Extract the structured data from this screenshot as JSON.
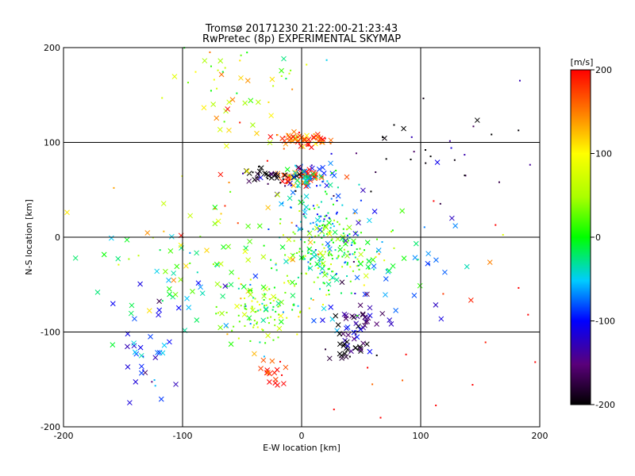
{
  "chart_data": {
    "type": "scatter",
    "title": "Tromsø 20171230 21:22:00-21:23:43",
    "subtitle": "RwPretec (8p) EXPERIMENTAL SKYMAP",
    "xlabel": "E-W location [km]",
    "ylabel": "N-S location [km]",
    "xlim": [
      -200,
      200
    ],
    "ylim": [
      -200,
      200
    ],
    "xticks": [
      -200,
      -100,
      0,
      100,
      200
    ],
    "yticks": [
      -200,
      -100,
      0,
      100,
      200
    ],
    "grid_lines_x": [
      -100,
      0,
      100
    ],
    "grid_lines_y": [
      -100,
      0,
      100
    ],
    "colorbar": {
      "label": "[m/s]",
      "min": -200,
      "max": 200,
      "ticks": [
        200,
        100,
        0,
        -100,
        -200
      ],
      "colormap": "black-purple-blue-cyan-green-yellow-orange-red"
    },
    "marker_types": [
      "dot",
      "x"
    ],
    "clusters": [
      {
        "x": 0,
        "y": 103,
        "sx": 12,
        "sy": 4,
        "v": 170,
        "n": 60,
        "m": "x"
      },
      {
        "x": 0,
        "y": 64,
        "sx": 10,
        "sy": 4,
        "v": 200,
        "n": 40,
        "m": "x"
      },
      {
        "x": -28,
        "y": 65,
        "sx": 10,
        "sy": 5,
        "v": -200,
        "n": 35,
        "m": "x"
      },
      {
        "x": 10,
        "y": 65,
        "sx": 9,
        "sy": 5,
        "v": -60,
        "n": 35,
        "m": "x"
      },
      {
        "x": 45,
        "y": -90,
        "sx": 12,
        "sy": 8,
        "v": -130,
        "n": 45,
        "m": "x"
      },
      {
        "x": 42,
        "y": -118,
        "sx": 10,
        "sy": 6,
        "v": -200,
        "n": 30,
        "m": "x"
      },
      {
        "x": -25,
        "y": -143,
        "sx": 6,
        "sy": 10,
        "v": 200,
        "n": 18,
        "m": "x"
      },
      {
        "x": 25,
        "y": -15,
        "sx": 25,
        "sy": 20,
        "v": 10,
        "n": 240,
        "m": "dot"
      },
      {
        "x": 10,
        "y": 30,
        "sx": 15,
        "sy": 20,
        "v": -60,
        "n": 80,
        "m": "dot"
      },
      {
        "x": -35,
        "y": -75,
        "sx": 20,
        "sy": 15,
        "v": 40,
        "n": 110,
        "m": "dot"
      },
      {
        "x": -130,
        "y": -125,
        "sx": 15,
        "sy": 30,
        "v": -100,
        "n": 35,
        "m": "x"
      },
      {
        "x": -75,
        "y": -50,
        "sx": 40,
        "sy": 35,
        "v": 0,
        "n": 80,
        "m": "x"
      },
      {
        "x": -55,
        "y": 140,
        "sx": 20,
        "sy": 30,
        "v": 90,
        "n": 30,
        "m": "x"
      },
      {
        "x": 100,
        "y": 90,
        "sx": 40,
        "sy": 30,
        "v": -200,
        "n": 30,
        "m": "dot"
      },
      {
        "x": -40,
        "y": 180,
        "sx": 50,
        "sy": 20,
        "v": 40,
        "n": 30,
        "m": "dot"
      },
      {
        "x": 130,
        "y": -100,
        "sx": 50,
        "sy": 50,
        "v": 200,
        "n": 20,
        "m": "dot"
      },
      {
        "x": -80,
        "y": 10,
        "sx": 50,
        "sy": 40,
        "v": 120,
        "n": 30,
        "m": "x"
      },
      {
        "x": 70,
        "y": -40,
        "sx": 40,
        "sy": 40,
        "v": -80,
        "n": 40,
        "m": "x"
      }
    ],
    "seed": 20171230
  },
  "colors": {
    "background": "#ffffff",
    "axes": "#000000",
    "grid": "#000000"
  }
}
